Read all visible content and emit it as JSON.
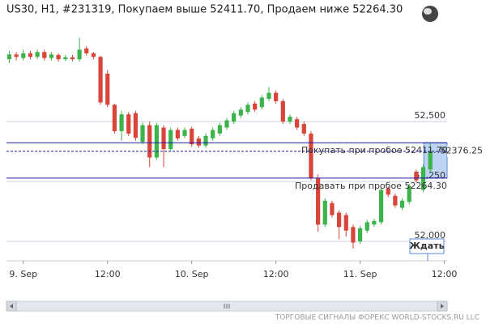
{
  "chart_data": {
    "type": "candlestick",
    "title": "US30, H1, #231319, Покупаем выше 52411.70, Продаем ниже 52264.30",
    "up_color": "#3cb44b",
    "down_color": "#d9453a",
    "grid": true,
    "x": [
      -2,
      -1,
      0,
      1,
      2,
      3,
      4,
      5,
      6,
      7,
      8,
      9,
      10,
      11,
      12,
      13,
      14,
      15,
      16,
      17,
      18,
      19,
      20,
      21,
      22,
      23,
      24,
      25,
      26,
      27,
      28,
      29,
      30,
      31,
      32,
      33,
      34,
      35,
      36,
      37,
      38,
      39,
      40,
      41,
      42,
      43,
      44,
      45,
      46,
      47,
      48,
      49,
      50,
      51,
      52,
      53,
      54,
      55,
      56,
      57,
      58
    ],
    "open": [
      52760,
      52780,
      52765,
      52785,
      52770,
      52790,
      52765,
      52778,
      52760,
      52768,
      52760,
      52805,
      52785,
      52770,
      52700,
      52570,
      52460,
      52530,
      52535,
      52415,
      52485,
      52350,
      52475,
      52385,
      52465,
      52440,
      52470,
      52430,
      52400,
      52430,
      52450,
      52475,
      52500,
      52525,
      52540,
      52575,
      52560,
      52595,
      52620,
      52585,
      52500,
      52510,
      52490,
      52450,
      52265,
      52070,
      52160,
      52120,
      52110,
      52060,
      52000,
      52045,
      52070,
      52080,
      52220,
      52190,
      52140,
      52165,
      52290,
      52215,
      52300
    ],
    "high": [
      52795,
      52790,
      52800,
      52795,
      52800,
      52800,
      52790,
      52785,
      52778,
      52778,
      52850,
      52815,
      52790,
      52775,
      52715,
      52575,
      52545,
      52540,
      52545,
      52495,
      52500,
      52495,
      52485,
      52475,
      52475,
      52475,
      52478,
      52440,
      52450,
      52475,
      52495,
      52515,
      52545,
      52560,
      52580,
      52585,
      52610,
      52645,
      52630,
      52595,
      52530,
      52520,
      52500,
      52460,
      52280,
      52180,
      52170,
      52130,
      52120,
      52070,
      52065,
      52090,
      52095,
      52225,
      52230,
      52200,
      52180,
      52240,
      52300,
      52320,
      52410
    ],
    "low": [
      52745,
      52755,
      52755,
      52760,
      52760,
      52755,
      52755,
      52750,
      52752,
      52752,
      52750,
      52775,
      52760,
      52570,
      52560,
      52450,
      52420,
      52440,
      52420,
      52405,
      52310,
      52340,
      52310,
      52375,
      52420,
      52430,
      52395,
      52390,
      52390,
      52420,
      52440,
      52465,
      52490,
      52515,
      52530,
      52540,
      52550,
      52585,
      52575,
      52490,
      52490,
      52465,
      52440,
      52255,
      52040,
      52060,
      52100,
      52010,
      52020,
      51970,
      51990,
      52035,
      52060,
      52070,
      52185,
      52140,
      52130,
      52155,
      52245,
      52205,
      52290
    ],
    "close": [
      52780,
      52770,
      52785,
      52770,
      52790,
      52765,
      52780,
      52760,
      52768,
      52760,
      52800,
      52785,
      52770,
      52580,
      52570,
      52460,
      52530,
      52450,
      52432,
      52485,
      52350,
      52485,
      52385,
      52465,
      52430,
      52465,
      52405,
      52400,
      52440,
      52465,
      52485,
      52505,
      52535,
      52550,
      52570,
      52550,
      52600,
      52620,
      52585,
      52500,
      52520,
      52475,
      52450,
      52265,
      52070,
      52170,
      52110,
      52060,
      52045,
      51995,
      52055,
      52080,
      52085,
      52215,
      52195,
      52150,
      52170,
      52230,
      52255,
      52310,
      52376.25
    ],
    "xlim": [
      -2.4,
      60.4
    ],
    "ylim": [
      51919,
      52872
    ],
    "xticks": [
      {
        "value": 0,
        "label": "9. Sep"
      },
      {
        "value": 12,
        "label": "12:00"
      },
      {
        "value": 24,
        "label": "10. Sep"
      },
      {
        "value": 36,
        "label": "12:00"
      },
      {
        "value": 48,
        "label": "11. Sep"
      },
      {
        "value": 60,
        "label": "12:00"
      }
    ],
    "yticks": [
      {
        "value": 52000,
        "label": "52,000"
      },
      {
        "value": 52250,
        "label": "52,250"
      },
      {
        "value": 52500,
        "label": "52,500"
      }
    ],
    "levels": [
      {
        "label": "Покупать при пробое 52411.70",
        "value": 52411.7
      },
      {
        "label": "Продавать при пробое 52264.30",
        "value": 52264.3
      }
    ],
    "current_price": 52376.25,
    "signal": "Ждать",
    "footer": "ТОРГОВЫЕ СИГНАЛЫ ФОРЕКС WORLD-STOCKS.RU LLC"
  }
}
